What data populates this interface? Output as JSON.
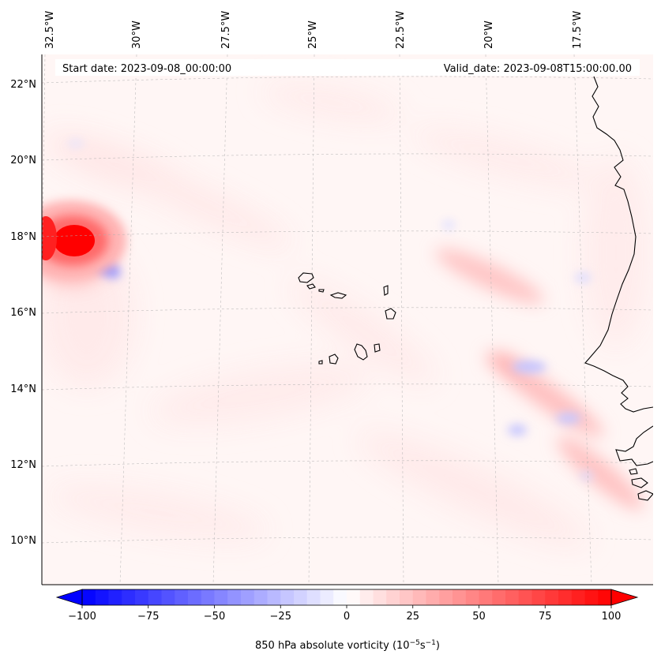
{
  "header": {
    "start_date": "Start date: 2023-09-08_00:00:00",
    "valid_date": "Valid_date: 2023-09-08T15:00:00.00"
  },
  "longitude_labels": [
    "32.5°W",
    "30°W",
    "27.5°W",
    "25°W",
    "22.5°W",
    "20°W",
    "17.5°W"
  ],
  "latitude_labels": [
    "22°N",
    "20°N",
    "18°N",
    "16°N",
    "14°N",
    "12°N",
    "10°N"
  ],
  "colorbar": {
    "ticks": [
      "−100",
      "−75",
      "−50",
      "−25",
      "0",
      "25",
      "50",
      "75",
      "100"
    ],
    "label_main": "850 hPa absolute vorticity (10",
    "label_sup1": "−5",
    "label_mid": "s",
    "label_sup2": "−1",
    "label_end": ")",
    "min": -100,
    "max": 100,
    "colors": {
      "negative": "#0000ff",
      "zero": "#ffffff",
      "positive": "#ff0000"
    }
  },
  "map": {
    "coastline_color": "#000000",
    "grid": true
  }
}
